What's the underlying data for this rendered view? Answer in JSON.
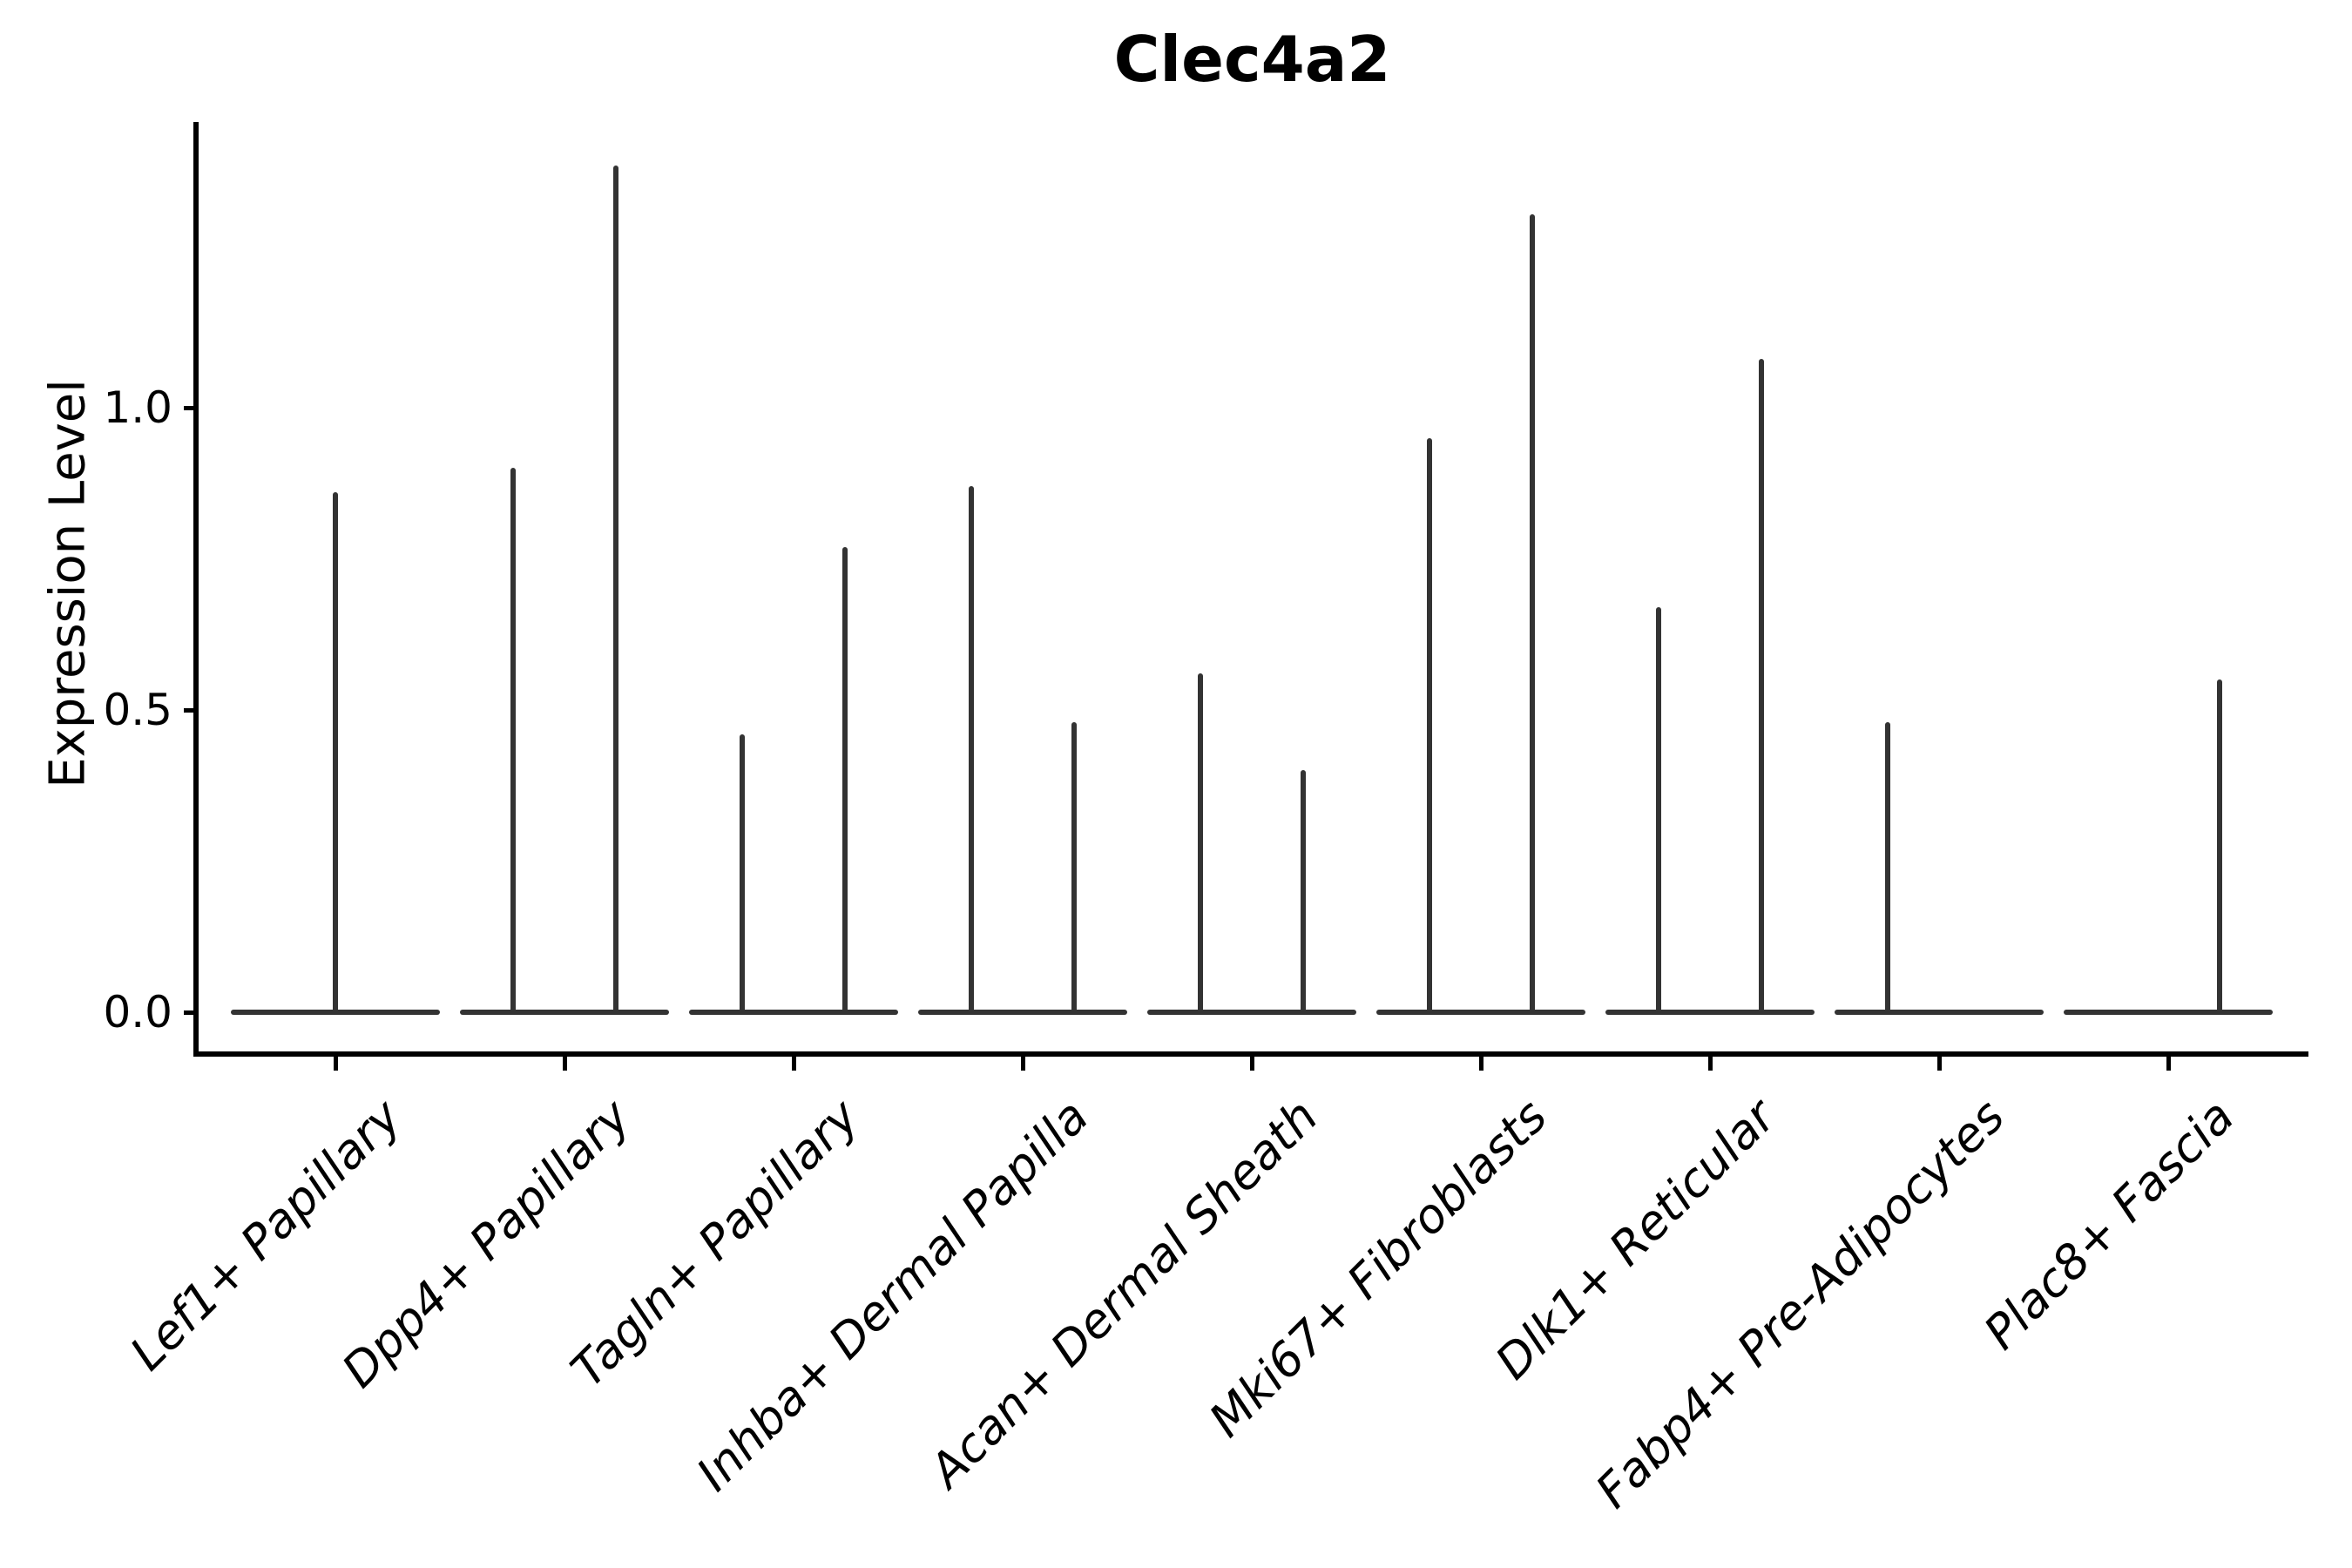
{
  "figure_title": "Clec4a2",
  "y_axis": {
    "label": "Expression Level",
    "ticks": [
      {
        "label": "0.0",
        "value": 0.0
      },
      {
        "label": "0.5",
        "value": 0.5
      },
      {
        "label": "1.0",
        "value": 1.0
      }
    ]
  },
  "chart_data": {
    "type": "violin",
    "title": "Clec4a2",
    "xlabel": "",
    "ylabel": "Expression Level",
    "ylim": [
      0,
      1.47
    ],
    "ytick_values": [
      0.0,
      0.5,
      1.0
    ],
    "grid": false,
    "legend": "none",
    "style_note": "thin black violins on zero baseline; most cells at 0 expression with a narrow spike to the max value; two grouped violins per category except Lef1+ Papillary which has one full-width violin",
    "categories": [
      "Lef1+ Papillary",
      "Dpp4+ Papillary",
      "Tagln+ Papillary",
      "Inhba+ Dermal Papilla",
      "Acan+ Dermal Sheath",
      "Mki67+ Fibroblasts",
      "Dlk1+ Reticular",
      "Fabp4+ Pre-Adipocytes",
      "Plac8+ Fascia"
    ],
    "violins_per_category": [
      [
        {
          "side": "center",
          "max_expression": 0.86
        }
      ],
      [
        {
          "side": "left",
          "max_expression": 0.9
        },
        {
          "side": "right",
          "max_expression": 1.4
        }
      ],
      [
        {
          "side": "left",
          "max_expression": 0.46
        },
        {
          "side": "right",
          "max_expression": 0.77
        }
      ],
      [
        {
          "side": "left",
          "max_expression": 0.87
        },
        {
          "side": "right",
          "max_expression": 0.48
        }
      ],
      [
        {
          "side": "left",
          "max_expression": 0.56
        },
        {
          "side": "right",
          "max_expression": 0.4
        }
      ],
      [
        {
          "side": "left",
          "max_expression": 0.95
        },
        {
          "side": "right",
          "max_expression": 1.32
        }
      ],
      [
        {
          "side": "left",
          "max_expression": 0.67
        },
        {
          "side": "right",
          "max_expression": 1.08
        }
      ],
      [
        {
          "side": "left",
          "max_expression": 0.48
        },
        {
          "side": "right",
          "max_expression": 0.0
        }
      ],
      [
        {
          "side": "left",
          "max_expression": 0.0
        },
        {
          "side": "right",
          "max_expression": 0.55
        }
      ]
    ],
    "baseline_value": 0.0,
    "colors": {
      "violin": "#333333",
      "axis": "#000000",
      "text": "#000000",
      "background": "#ffffff"
    }
  }
}
